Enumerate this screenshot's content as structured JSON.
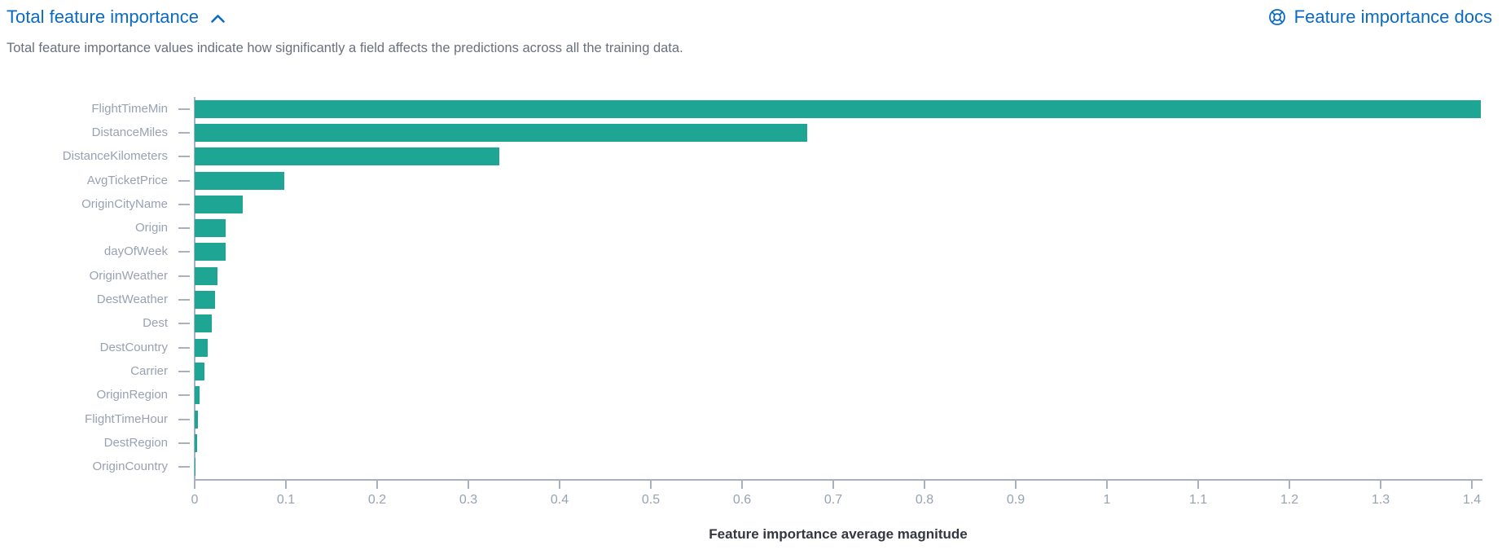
{
  "header": {
    "title": "Total feature importance",
    "collapse_icon": "chevron-up-icon",
    "subtitle": "Total feature importance values indicate how significantly a field affects the predictions across all the training data.",
    "docs_link": {
      "label": "Feature importance docs",
      "icon": "lifebuoy-icon"
    }
  },
  "colors": {
    "bar": "#1ea593",
    "link_blue": "#0b6bc2",
    "subtitle_gray": "#69707d",
    "axis_label_gray": "#98a2b3",
    "axis_line_gray": "#a8b1bf",
    "axis_title_dark": "#343741"
  },
  "chart_data": {
    "type": "bar",
    "orientation": "horizontal",
    "title": "",
    "xlabel": "Feature importance average magnitude",
    "ylabel": "",
    "xlim": [
      0,
      1.411
    ],
    "grid": false,
    "legend": "none",
    "categories": [
      "FlightTimeMin",
      "DistanceMiles",
      "DistanceKilometers",
      "AvgTicketPrice",
      "OriginCityName",
      "Origin",
      "dayOfWeek",
      "OriginWeather",
      "DestWeather",
      "Dest",
      "DestCountry",
      "Carrier",
      "OriginRegion",
      "FlightTimeHour",
      "DestRegion",
      "OriginCountry"
    ],
    "values": [
      1.41,
      0.671,
      0.334,
      0.098,
      0.053,
      0.034,
      0.034,
      0.025,
      0.022,
      0.019,
      0.014,
      0.011,
      0.005,
      0.004,
      0.003,
      0.0005
    ],
    "x_ticks": [
      "0",
      "0.1",
      "0.2",
      "0.3",
      "0.4",
      "0.5",
      "0.6",
      "0.7",
      "0.8",
      "0.9",
      "1",
      "1.1",
      "1.2",
      "1.3",
      "1.4"
    ]
  }
}
